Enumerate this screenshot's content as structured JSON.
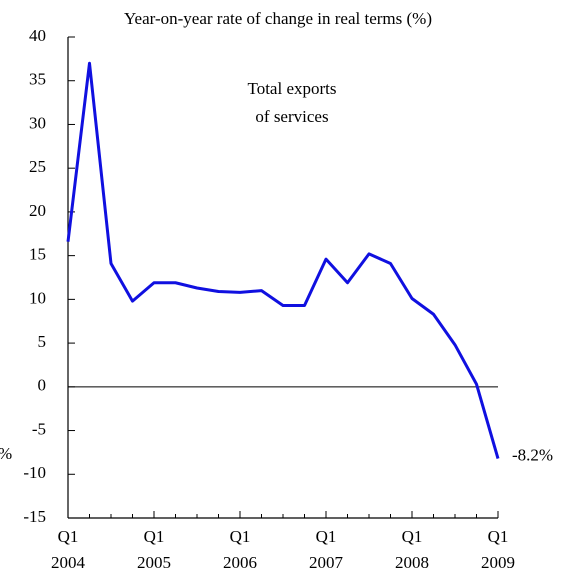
{
  "chart_data": {
    "type": "line",
    "title": "Year-on-year rate of change in real terms (%)",
    "categories": [
      "Q1 2004",
      null,
      null,
      null,
      "Q1 2005",
      null,
      null,
      null,
      "Q1 2006",
      null,
      null,
      null,
      "Q1 2007",
      null,
      null,
      null,
      "Q1 2008",
      null,
      null,
      null,
      "Q1 2009"
    ],
    "series": [
      {
        "name": "Total exports of services",
        "color": "#1010e0",
        "values": [
          16.6,
          37.0,
          14.1,
          9.8,
          11.9,
          11.9,
          11.3,
          10.9,
          10.8,
          11.0,
          9.3,
          9.3,
          14.6,
          11.9,
          15.2,
          14.1,
          10.1,
          8.3,
          4.8,
          0.3,
          -8.2
        ],
        "value_labels": [
          null,
          null,
          null,
          null,
          null,
          null,
          null,
          null,
          null,
          null,
          null,
          null,
          null,
          null,
          null,
          null,
          null,
          null,
          null,
          null,
          "-8.2%"
        ]
      }
    ],
    "annotations": [
      "Total exports",
      "of services",
      "%"
    ],
    "ylim": [
      -15,
      40
    ],
    "yticks": [
      -15,
      -10,
      -5,
      0,
      5,
      10,
      15,
      20,
      25,
      30,
      35,
      40
    ],
    "zero_line": true
  }
}
